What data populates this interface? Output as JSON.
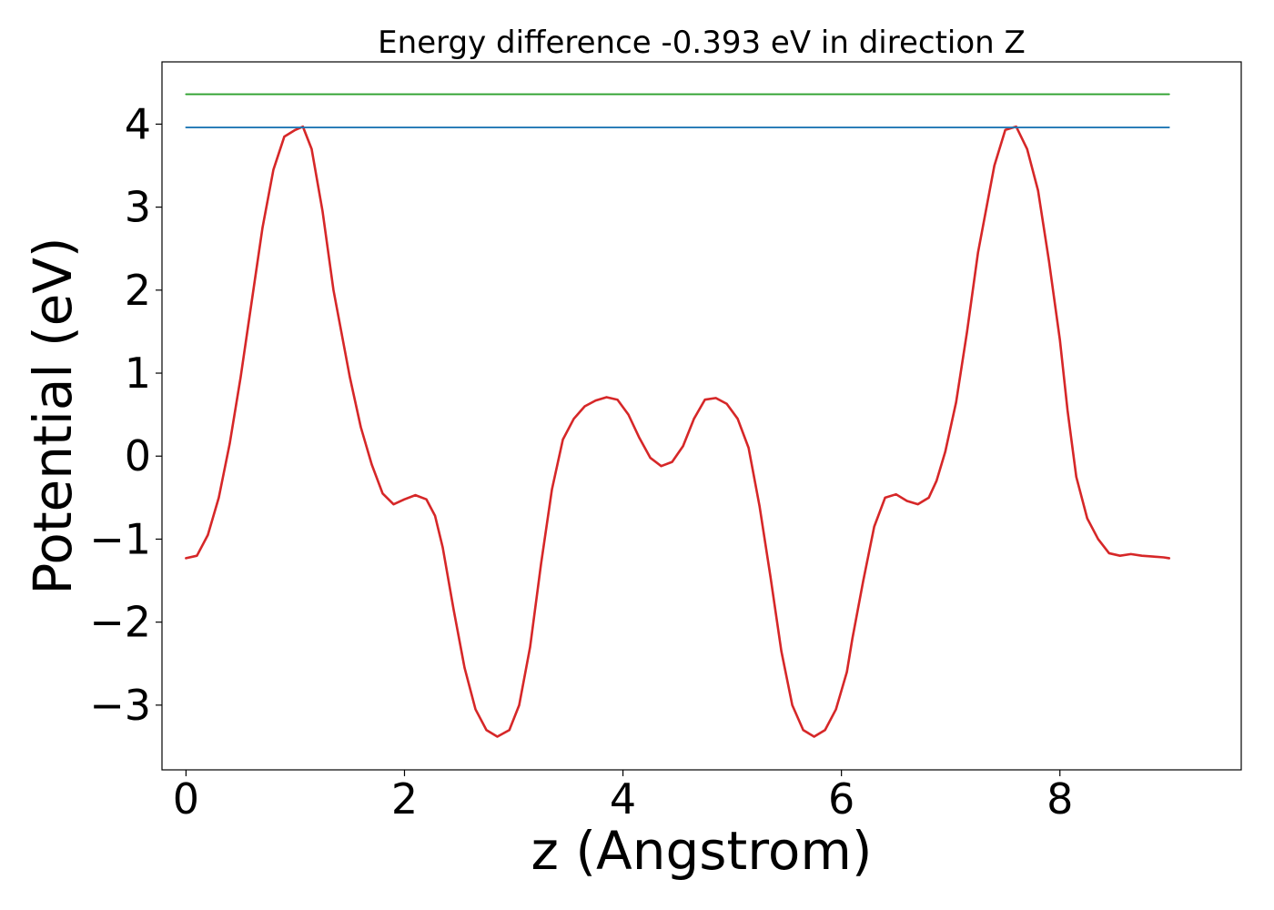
{
  "chart_data": {
    "type": "line",
    "title": "Energy difference -0.393 eV in direction Z",
    "xlabel": "z (Angstrom)",
    "ylabel": "Potential (eV)",
    "xlim": [
      -0.22,
      9.66
    ],
    "ylim": [
      -3.78,
      4.75
    ],
    "xticks": [
      0,
      2,
      4,
      6,
      8
    ],
    "yticks": [
      -3,
      -2,
      -1,
      0,
      1,
      2,
      3,
      4
    ],
    "xtick_labels": [
      "0",
      "2",
      "4",
      "6",
      "8"
    ],
    "ytick_labels": [
      "−3",
      "−2",
      "−1",
      "0",
      "1",
      "2",
      "3",
      "4"
    ],
    "grid": false,
    "legend": "none",
    "series": [
      {
        "color": "#d62728",
        "x": [
          0.0,
          0.1,
          0.2,
          0.3,
          0.4,
          0.5,
          0.6,
          0.7,
          0.8,
          0.9,
          1.0,
          1.07,
          1.15,
          1.25,
          1.35,
          1.5,
          1.6,
          1.7,
          1.8,
          1.9,
          2.0,
          2.1,
          2.2,
          2.28,
          2.35,
          2.45,
          2.55,
          2.65,
          2.75,
          2.85,
          2.96,
          3.05,
          3.15,
          3.25,
          3.35,
          3.45,
          3.55,
          3.65,
          3.75,
          3.85,
          3.95,
          4.05,
          4.15,
          4.25,
          4.35,
          4.45,
          4.55,
          4.65,
          4.75,
          4.85,
          4.95,
          5.05,
          5.15,
          5.25,
          5.35,
          5.45,
          5.55,
          5.65,
          5.75,
          5.85,
          5.95,
          6.05,
          6.1,
          6.2,
          6.3,
          6.4,
          6.5,
          6.6,
          6.7,
          6.8,
          6.87,
          6.95,
          7.05,
          7.15,
          7.25,
          7.4,
          7.5,
          7.6,
          7.7,
          7.8,
          7.9,
          8.0,
          8.07,
          8.15,
          8.25,
          8.35,
          8.45,
          8.55,
          8.65,
          8.75,
          8.85,
          8.95,
          9.0
        ],
        "y": [
          -1.23,
          -1.2,
          -0.95,
          -0.5,
          0.15,
          0.95,
          1.85,
          2.75,
          3.45,
          3.85,
          3.93,
          3.97,
          3.7,
          2.95,
          2.0,
          0.95,
          0.35,
          -0.1,
          -0.45,
          -0.58,
          -0.52,
          -0.47,
          -0.52,
          -0.72,
          -1.1,
          -1.85,
          -2.55,
          -3.05,
          -3.3,
          -3.38,
          -3.3,
          -3.0,
          -2.3,
          -1.3,
          -0.4,
          0.2,
          0.45,
          0.6,
          0.67,
          0.71,
          0.68,
          0.5,
          0.22,
          -0.02,
          -0.12,
          -0.07,
          0.12,
          0.45,
          0.68,
          0.7,
          0.63,
          0.45,
          0.1,
          -0.6,
          -1.45,
          -2.35,
          -3.0,
          -3.3,
          -3.38,
          -3.3,
          -3.05,
          -2.6,
          -2.2,
          -1.5,
          -0.85,
          -0.5,
          -0.46,
          -0.54,
          -0.58,
          -0.5,
          -0.3,
          0.05,
          0.65,
          1.5,
          2.45,
          3.5,
          3.93,
          3.97,
          3.7,
          3.2,
          2.35,
          1.4,
          0.55,
          -0.25,
          -0.75,
          -1.0,
          -1.17,
          -1.2,
          -1.18,
          -1.2,
          -1.21,
          -1.22,
          -1.23
        ]
      },
      {
        "color": "#1f77b4",
        "x": [
          0.0,
          9.0
        ],
        "y": [
          3.96,
          3.96
        ]
      },
      {
        "color": "#2ca02c",
        "x": [
          0.0,
          9.0
        ],
        "y": [
          4.36,
          4.36
        ]
      }
    ]
  }
}
